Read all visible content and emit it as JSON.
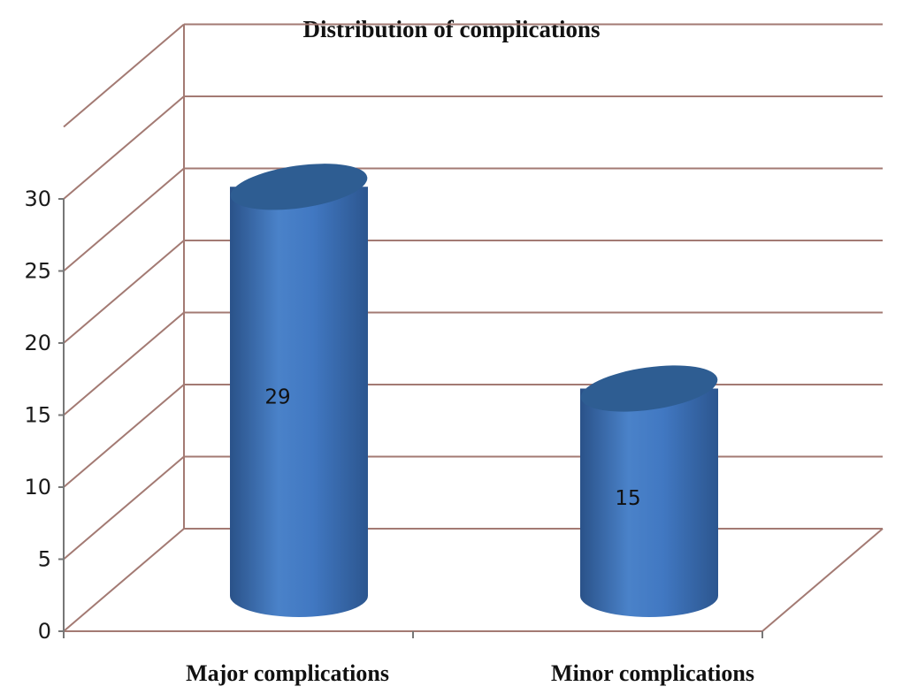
{
  "chart_data": {
    "type": "bar",
    "title": "Distribution of complications",
    "categories": [
      "Major complications",
      "Minor complications"
    ],
    "values": [
      29,
      15
    ],
    "data_labels": [
      "29",
      "15"
    ],
    "ylim": [
      0,
      35
    ],
    "yticks": [
      0,
      5,
      10,
      15,
      20,
      25,
      30
    ],
    "grid": true,
    "legend": "none",
    "bar_shape": "3d-cylinder",
    "bar_color": "#3f73bd",
    "bar_top_color": "#2e5d92",
    "grid_color": "#a37a73"
  }
}
